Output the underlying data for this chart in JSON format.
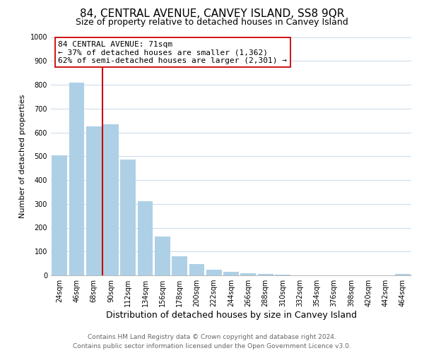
{
  "title": "84, CENTRAL AVENUE, CANVEY ISLAND, SS8 9QR",
  "subtitle": "Size of property relative to detached houses in Canvey Island",
  "xlabel": "Distribution of detached houses by size in Canvey Island",
  "ylabel": "Number of detached properties",
  "bar_labels": [
    "24sqm",
    "46sqm",
    "68sqm",
    "90sqm",
    "112sqm",
    "134sqm",
    "156sqm",
    "178sqm",
    "200sqm",
    "222sqm",
    "244sqm",
    "266sqm",
    "288sqm",
    "310sqm",
    "332sqm",
    "354sqm",
    "376sqm",
    "398sqm",
    "420sqm",
    "442sqm",
    "464sqm"
  ],
  "bar_values": [
    505,
    810,
    625,
    635,
    485,
    310,
    162,
    80,
    48,
    25,
    15,
    10,
    5,
    2,
    1,
    0,
    0,
    0,
    0,
    0,
    5
  ],
  "bar_color": "#aed0e6",
  "property_line_idx": 2,
  "property_line_color": "#cc0000",
  "annotation_title": "84 CENTRAL AVENUE: 71sqm",
  "annotation_line1": "← 37% of detached houses are smaller (1,362)",
  "annotation_line2": "62% of semi-detached houses are larger (2,301) →",
  "annotation_box_color": "#ffffff",
  "annotation_box_edge": "#cc0000",
  "ylim": [
    0,
    1000
  ],
  "yticks": [
    0,
    100,
    200,
    300,
    400,
    500,
    600,
    700,
    800,
    900,
    1000
  ],
  "footer_line1": "Contains HM Land Registry data © Crown copyright and database right 2024.",
  "footer_line2": "Contains public sector information licensed under the Open Government Licence v3.0.",
  "title_fontsize": 11,
  "subtitle_fontsize": 9,
  "xlabel_fontsize": 9,
  "ylabel_fontsize": 8,
  "annotation_fontsize": 8,
  "tick_fontsize": 7,
  "footer_fontsize": 6.5,
  "grid_color": "#c8daea",
  "background_color": "#ffffff"
}
